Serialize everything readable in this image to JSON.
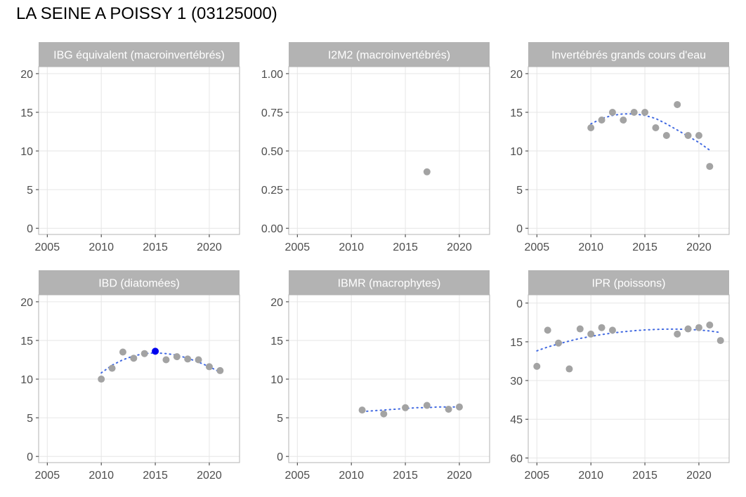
{
  "title": "LA SEINE A POISSY 1 (03125000)",
  "colors": {
    "strip": "#b3b3b3",
    "panel_border": "#b3b3b3",
    "grid": "#e6e6e6",
    "point": "#a3a3a3",
    "highlight_point": "#0000ee",
    "trend": "#4169e1",
    "tick_text": "#4d4d4d"
  },
  "chart_data": [
    {
      "type": "scatter",
      "title": "IBG équivalent (macroinvertébrés)",
      "x_ticks": [
        2005,
        2010,
        2015,
        2020
      ],
      "xlim": [
        2004.2,
        2022.8
      ],
      "y_ticks": [
        0,
        5,
        10,
        15,
        20
      ],
      "ylim": [
        -0.8,
        20.9
      ],
      "y_reversed": false,
      "points": [],
      "highlight": [],
      "trend": []
    },
    {
      "type": "scatter",
      "title": "I2M2 (macroinvertébrés)",
      "x_ticks": [
        2005,
        2010,
        2015,
        2020
      ],
      "xlim": [
        2004.2,
        2022.8
      ],
      "y_ticks": [
        0.0,
        0.25,
        0.5,
        0.75,
        1.0
      ],
      "y_tick_labels": [
        "0.00",
        "0.25",
        "0.50",
        "0.75",
        "1.00"
      ],
      "ylim": [
        -0.04,
        1.045
      ],
      "y_reversed": false,
      "points": [
        [
          2017,
          0.365
        ]
      ],
      "highlight": [],
      "trend": []
    },
    {
      "type": "scatter",
      "title": "Invertébrés grands cours d'eau",
      "x_ticks": [
        2005,
        2010,
        2015,
        2020
      ],
      "xlim": [
        2004.2,
        2022.8
      ],
      "y_ticks": [
        0,
        5,
        10,
        15,
        20
      ],
      "ylim": [
        -0.8,
        20.9
      ],
      "y_reversed": false,
      "points": [
        [
          2010,
          13
        ],
        [
          2011,
          14
        ],
        [
          2012,
          15
        ],
        [
          2013,
          14
        ],
        [
          2014,
          15
        ],
        [
          2015,
          15
        ],
        [
          2016,
          13
        ],
        [
          2017,
          12
        ],
        [
          2018,
          16
        ],
        [
          2019,
          12
        ],
        [
          2020,
          12
        ],
        [
          2021,
          8
        ]
      ],
      "highlight": [],
      "trend": [
        [
          2010,
          13.5
        ],
        [
          2011,
          14.2
        ],
        [
          2012,
          14.6
        ],
        [
          2013,
          14.8
        ],
        [
          2014,
          14.8
        ],
        [
          2015,
          14.6
        ],
        [
          2016,
          14.2
        ],
        [
          2017,
          13.5
        ],
        [
          2018,
          12.7
        ],
        [
          2019,
          11.9
        ],
        [
          2020,
          11.1
        ],
        [
          2021,
          10.1
        ]
      ]
    },
    {
      "type": "scatter",
      "title": "IBD (diatomées)",
      "x_ticks": [
        2005,
        2010,
        2015,
        2020
      ],
      "xlim": [
        2004.2,
        2022.8
      ],
      "y_ticks": [
        0,
        5,
        10,
        15,
        20
      ],
      "ylim": [
        -0.8,
        20.9
      ],
      "y_reversed": false,
      "points": [
        [
          2010,
          10.0
        ],
        [
          2011,
          11.4
        ],
        [
          2012,
          13.5
        ],
        [
          2013,
          12.7
        ],
        [
          2014,
          13.3
        ],
        [
          2016,
          12.5
        ],
        [
          2017,
          12.9
        ],
        [
          2018,
          12.6
        ],
        [
          2019,
          12.5
        ],
        [
          2020,
          11.6
        ],
        [
          2021,
          11.1
        ]
      ],
      "highlight": [
        [
          2015,
          13.6
        ]
      ],
      "trend": [
        [
          2010,
          10.8
        ],
        [
          2011,
          11.8
        ],
        [
          2012,
          12.5
        ],
        [
          2013,
          13.0
        ],
        [
          2014,
          13.3
        ],
        [
          2015,
          13.4
        ],
        [
          2016,
          13.3
        ],
        [
          2017,
          13.1
        ],
        [
          2018,
          12.7
        ],
        [
          2019,
          12.2
        ],
        [
          2020,
          11.6
        ],
        [
          2021,
          10.9
        ]
      ]
    },
    {
      "type": "scatter",
      "title": "IBMR (macrophytes)",
      "x_ticks": [
        2005,
        2010,
        2015,
        2020
      ],
      "xlim": [
        2004.2,
        2022.8
      ],
      "y_ticks": [
        0,
        5,
        10,
        15,
        20
      ],
      "ylim": [
        -0.8,
        20.9
      ],
      "y_reversed": false,
      "points": [
        [
          2011,
          6.0
        ],
        [
          2013,
          5.5
        ],
        [
          2015,
          6.3
        ],
        [
          2017,
          6.6
        ],
        [
          2019,
          6.1
        ],
        [
          2020,
          6.4
        ]
      ],
      "highlight": [],
      "trend": [
        [
          2011,
          5.8
        ],
        [
          2012,
          5.9
        ],
        [
          2013,
          6.0
        ],
        [
          2014,
          6.1
        ],
        [
          2015,
          6.2
        ],
        [
          2016,
          6.3
        ],
        [
          2017,
          6.3
        ],
        [
          2018,
          6.4
        ],
        [
          2019,
          6.4
        ],
        [
          2020,
          6.4
        ]
      ]
    },
    {
      "type": "scatter",
      "title": "IPR (poissons)",
      "x_ticks": [
        2005,
        2010,
        2015,
        2020
      ],
      "xlim": [
        2004.2,
        2022.8
      ],
      "y_ticks": [
        0,
        15,
        30,
        45,
        60
      ],
      "ylim": [
        -3.2,
        61.8
      ],
      "y_reversed": true,
      "points": [
        [
          2005,
          24.5
        ],
        [
          2006,
          10.5
        ],
        [
          2007,
          15.5
        ],
        [
          2008,
          25.5
        ],
        [
          2009,
          10.0
        ],
        [
          2010,
          12.0
        ],
        [
          2011,
          9.5
        ],
        [
          2012,
          10.5
        ],
        [
          2018,
          12.0
        ],
        [
          2019,
          10.0
        ],
        [
          2020,
          9.5
        ],
        [
          2021,
          8.5
        ],
        [
          2022,
          14.5
        ]
      ],
      "highlight": [],
      "trend": [
        [
          2005,
          18.5
        ],
        [
          2006,
          17.0
        ],
        [
          2007,
          15.8
        ],
        [
          2008,
          14.7
        ],
        [
          2009,
          13.7
        ],
        [
          2010,
          12.9
        ],
        [
          2011,
          12.2
        ],
        [
          2012,
          11.6
        ],
        [
          2013,
          11.1
        ],
        [
          2014,
          10.7
        ],
        [
          2015,
          10.4
        ],
        [
          2016,
          10.2
        ],
        [
          2017,
          10.1
        ],
        [
          2018,
          10.1
        ],
        [
          2019,
          10.2
        ],
        [
          2020,
          10.4
        ],
        [
          2021,
          10.8
        ],
        [
          2022,
          11.4
        ]
      ]
    }
  ]
}
